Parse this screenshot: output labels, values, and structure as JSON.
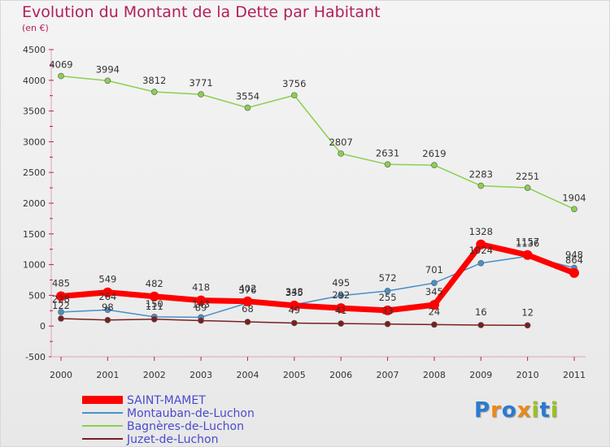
{
  "title": "Evolution du Montant de la Dette par Habitant",
  "subtitle": "(en €)",
  "colors": {
    "title": "#b21f5a",
    "saint_mamet": "#ff0000",
    "montauban": "#4a90c8",
    "bagneres": "#8ccf50",
    "juzet": "#7a1f1f"
  },
  "logo": {
    "letters": [
      "P",
      "r",
      "o",
      "x",
      "i",
      "t",
      "i"
    ],
    "colors": [
      "#2a7ad0",
      "#e88a1a",
      "#2a7ad0",
      "#e88a1a",
      "#9bc21e",
      "#2a7ad0",
      "#9bc21e"
    ]
  },
  "chart_data": {
    "type": "line",
    "title": "Evolution du Montant de la Dette par Habitant",
    "ylabel": "(en €)",
    "ylim": [
      -500,
      4500
    ],
    "yticks": [
      -500,
      0,
      500,
      1000,
      1500,
      2000,
      2500,
      3000,
      3500,
      4000,
      4500
    ],
    "x": [
      "2000",
      "2001",
      "2002",
      "2003",
      "2004",
      "2005",
      "2006",
      "2007",
      "2008",
      "2009",
      "2010",
      "2011"
    ],
    "grid": false,
    "legend": "bottom-left",
    "series": [
      {
        "name": "SAINT-MAMET",
        "key": "saint_mamet",
        "values": [
          485,
          549,
          482,
          418,
          402,
          335,
          292,
          255,
          345,
          1328,
          1157,
          864
        ],
        "labels": [
          "485",
          "549",
          "482",
          "418",
          "402",
          "335",
          "292",
          "255",
          "345",
          "1328",
          "1157",
          "864"
        ]
      },
      {
        "name": "Montauban-de-Luchon",
        "key": "montauban",
        "values": [
          228,
          264,
          150,
          143,
          376,
          348,
          495,
          572,
          701,
          1024,
          1136,
          948
        ],
        "labels": [
          "228",
          "264",
          "150",
          "143",
          "376",
          "348",
          "495",
          "572",
          "701",
          "1024",
          "1136",
          "948"
        ]
      },
      {
        "name": "Bagnères-de-Luchon",
        "key": "bagneres",
        "values": [
          4069,
          3994,
          3812,
          3771,
          3554,
          3756,
          2807,
          2631,
          2619,
          2283,
          2251,
          1904
        ],
        "labels": [
          "4069",
          "3994",
          "3812",
          "3771",
          "3554",
          "3756",
          "2807",
          "2631",
          "2619",
          "2283",
          "2251",
          "1904"
        ]
      },
      {
        "name": "Juzet-de-Luchon",
        "key": "juzet",
        "values": [
          122,
          98,
          111,
          89,
          68,
          49,
          41,
          33,
          24,
          16,
          12,
          null
        ],
        "labels": [
          "122",
          "98",
          "111",
          "89",
          "68",
          "49",
          "41",
          "33",
          "24",
          "16",
          "12",
          null
        ]
      }
    ]
  }
}
